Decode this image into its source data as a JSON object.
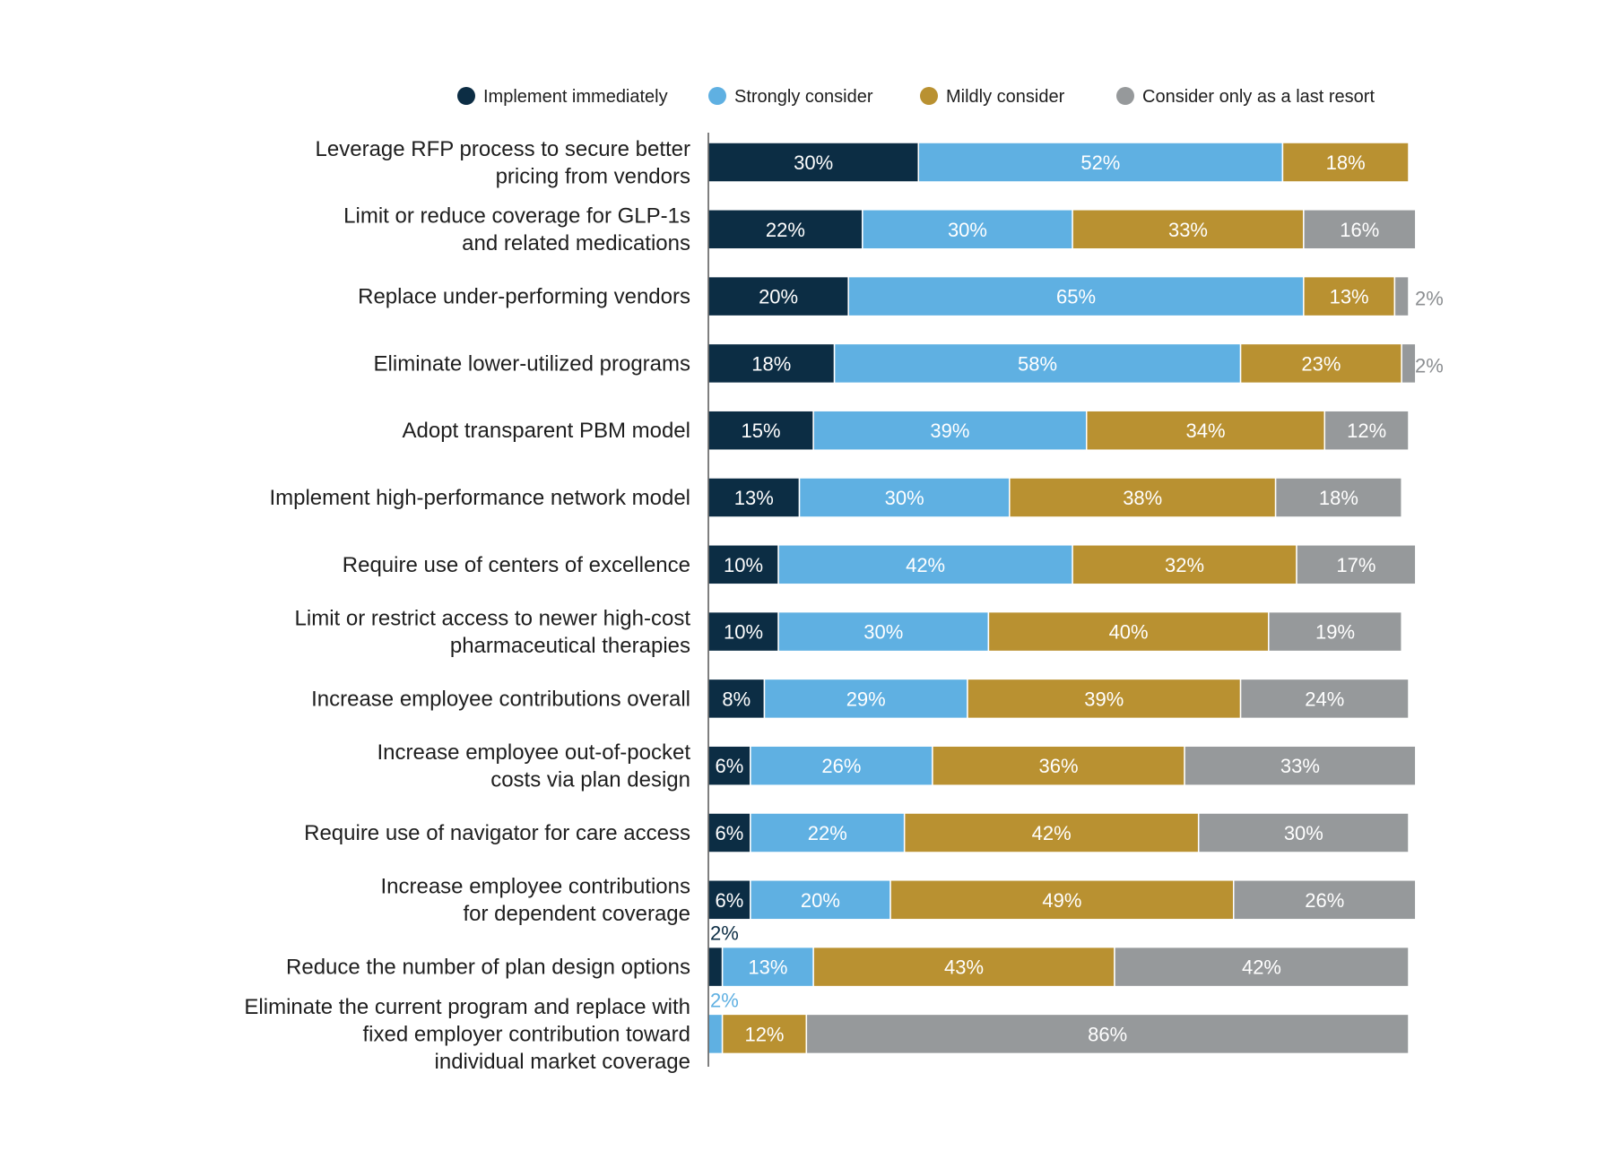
{
  "colors": {
    "implement": "#0c2d44",
    "strongly": "#5fb0e2",
    "mildly": "#b99131",
    "last_resort": "#96999b",
    "axis": "#555555"
  },
  "chart_data": {
    "type": "bar",
    "orientation": "horizontal",
    "stacked": true,
    "legend_position": "top",
    "xlim": [
      0,
      100
    ],
    "categories": [
      "Leverage RFP process to secure better pricing from vendors",
      "Limit or reduce coverage for GLP-1s and related medications",
      "Replace under-performing vendors",
      "Eliminate lower-utilized programs",
      "Adopt transparent PBM model",
      "Implement high-performance network model",
      "Require use of centers of excellence",
      "Limit or restrict access to newer high-cost pharmaceutical therapies",
      "Increase employee contributions overall",
      "Increase employee out-of-pocket costs via plan design",
      "Require use of navigator for care access",
      "Increase employee contributions for dependent coverage",
      "Reduce the number of plan design options",
      "Eliminate the current program and replace with fixed employer contribution toward individual market coverage"
    ],
    "category_lines": [
      [
        "Leverage RFP process to secure better",
        "pricing from vendors"
      ],
      [
        "Limit or reduce coverage for GLP-1s",
        "and related medications"
      ],
      [
        "Replace under-performing vendors"
      ],
      [
        "Eliminate lower-utilized programs"
      ],
      [
        "Adopt transparent PBM model"
      ],
      [
        "Implement high-performance network model"
      ],
      [
        "Require use of centers of excellence"
      ],
      [
        "Limit or restrict access to newer high-cost",
        "pharmaceutical therapies"
      ],
      [
        "Increase employee contributions overall"
      ],
      [
        "Increase employee out-of-pocket",
        "costs via plan design"
      ],
      [
        "Require use of navigator for care access"
      ],
      [
        "Increase employee contributions",
        "for dependent coverage"
      ],
      [
        "Reduce the number of plan design options"
      ],
      [
        "Eliminate the current program and replace with",
        "fixed employer contribution toward",
        "individual market coverage"
      ]
    ],
    "series": [
      {
        "name": "Implement immediately",
        "color_key": "implement",
        "values": [
          30,
          22,
          20,
          18,
          15,
          13,
          10,
          10,
          8,
          6,
          6,
          6,
          2,
          0
        ]
      },
      {
        "name": "Strongly consider",
        "color_key": "strongly",
        "values": [
          52,
          30,
          65,
          58,
          39,
          30,
          42,
          30,
          29,
          26,
          22,
          20,
          13,
          2
        ]
      },
      {
        "name": "Mildly consider",
        "color_key": "mildly",
        "values": [
          18,
          33,
          13,
          23,
          34,
          38,
          32,
          40,
          39,
          36,
          42,
          49,
          43,
          12
        ]
      },
      {
        "name": "Consider only as a last resort",
        "color_key": "last_resort",
        "values": [
          0,
          16,
          2,
          2,
          12,
          18,
          17,
          19,
          24,
          33,
          30,
          26,
          42,
          86
        ]
      }
    ]
  }
}
